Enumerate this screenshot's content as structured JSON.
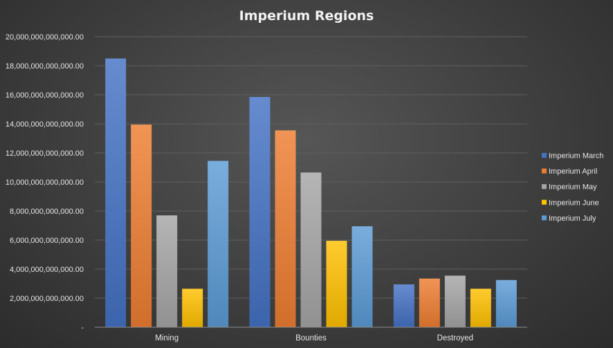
{
  "chart_data": {
    "type": "bar",
    "title": "Imperium Regions",
    "categories": [
      "Mining",
      "Bounties",
      "Destroyed"
    ],
    "series": [
      {
        "name": "Imperium March",
        "color": "#4472c4",
        "values": [
          18500000000000,
          15850000000000,
          2950000000000
        ]
      },
      {
        "name": "Imperium April",
        "color": "#ed7d31",
        "values": [
          13950000000000,
          13550000000000,
          3350000000000
        ]
      },
      {
        "name": "Imperium May",
        "color": "#a5a5a5",
        "values": [
          7700000000000,
          10650000000000,
          3550000000000
        ]
      },
      {
        "name": "Imperium June",
        "color": "#ffc000",
        "values": [
          2650000000000,
          5950000000000,
          2650000000000
        ]
      },
      {
        "name": "Imperium July",
        "color": "#5b9bd5",
        "values": [
          11450000000000,
          6950000000000,
          3250000000000
        ]
      }
    ],
    "ylim": [
      0,
      20000000000000
    ],
    "yticks": [
      0,
      2000000000000,
      4000000000000,
      6000000000000,
      8000000000000,
      10000000000000,
      12000000000000,
      14000000000000,
      16000000000000,
      18000000000000,
      20000000000000
    ],
    "ytick_labels": [
      "-",
      "2,000,000,000,000.00",
      "4,000,000,000,000.00",
      "6,000,000,000,000.00",
      "8,000,000,000,000.00",
      "10,000,000,000,000.00",
      "12,000,000,000,000.00",
      "14,000,000,000,000.00",
      "16,000,000,000,000.00",
      "18,000,000,000,000.00",
      "20,000,000,000,000.00"
    ],
    "xlabel": "",
    "ylabel": "",
    "grid": true,
    "legend_position": "right"
  }
}
